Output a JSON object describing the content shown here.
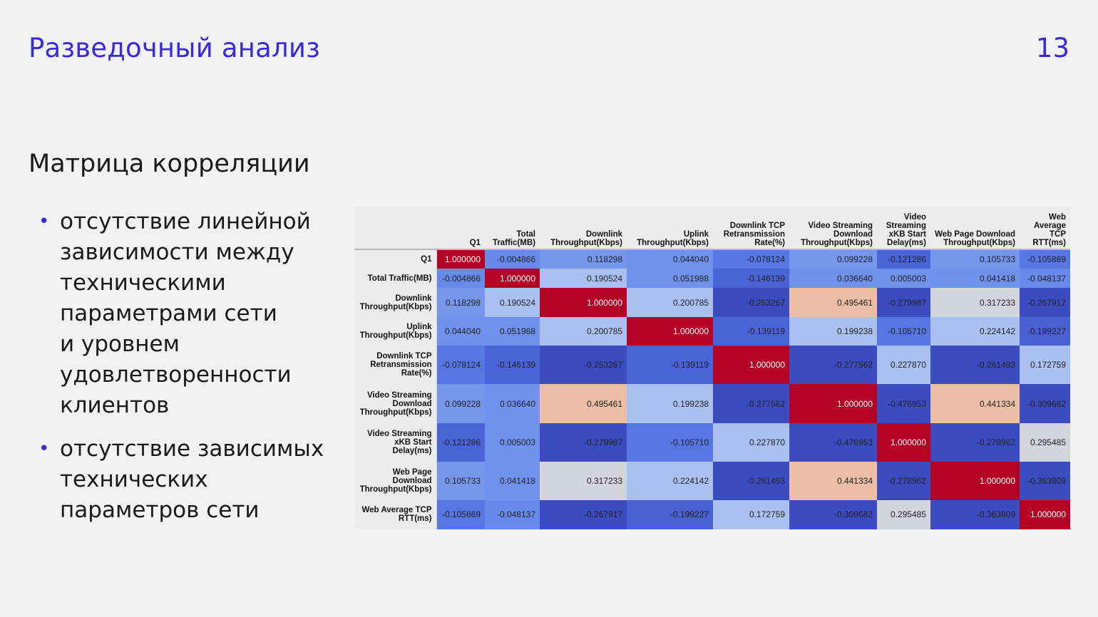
{
  "header": {
    "title": "Разведочный анализ",
    "page_number": "13"
  },
  "section": {
    "heading": "Матрица корреляции",
    "bullets": [
      "отсутствие линейной\nзависимости между\nтехническими\nпараметрами сети\nи уровнем\nудовлетворенности\nклиентов",
      "отсутствие зависимых\nтехнических\nпараметров сети"
    ]
  },
  "chart_data": {
    "type": "heatmap",
    "columns": [
      "Q1",
      "Total Traffic(MB)",
      "Downlink Throughput(Kbps)",
      "Uplink Throughput(Kbps)",
      "Downlink TCP Retransmission Rate(%)",
      "Video Streaming Download Throughput(Kbps)",
      "Video Streaming xKB Start Delay(ms)",
      "Web Page Download Throughput(Kbps)",
      "Web Average TCP RTT(ms)"
    ],
    "rows": [
      "Q1",
      "Total Traffic(MB)",
      "Downlink Throughput(Kbps)",
      "Uplink Throughput(Kbps)",
      "Downlink TCP Retransmission Rate(%)",
      "Video Streaming Download Throughput(Kbps)",
      "Video Streaming xKB Start Delay(ms)",
      "Web Page Download Throughput(Kbps)",
      "Web Average TCP RTT(ms)"
    ],
    "values": [
      [
        "1.000000",
        "-0.004866",
        "0.118298",
        "0.044040",
        "-0.078124",
        "0.099228",
        "-0.121286",
        "0.105733",
        "-0.105869"
      ],
      [
        "-0.004866",
        "1.000000",
        "0.190524",
        "0.051988",
        "-0.146139",
        "0.036640",
        "0.005003",
        "0.041418",
        "-0.048137"
      ],
      [
        "0.118298",
        "0.190524",
        "1.000000",
        "0.200785",
        "-0.253267",
        "0.495461",
        "-0.279987",
        "0.317233",
        "-0.267917"
      ],
      [
        "0.044040",
        "0.051988",
        "0.200785",
        "1.000000",
        "-0.139119",
        "0.199238",
        "-0.105710",
        "0.224142",
        "-0.199227"
      ],
      [
        "-0.078124",
        "-0.146139",
        "-0.253267",
        "-0.139119",
        "1.000000",
        "-0.277562",
        "0.227870",
        "-0.261493",
        "0.172759"
      ],
      [
        "0.099228",
        "0.036640",
        "0.495461",
        "0.199238",
        "-0.277562",
        "1.000000",
        "-0.476953",
        "0.441334",
        "-0.309682"
      ],
      [
        "-0.121286",
        "0.005003",
        "-0.279987",
        "-0.105710",
        "0.227870",
        "-0.476953",
        "1.000000",
        "-0.278962",
        "0.295485"
      ],
      [
        "0.105733",
        "0.041418",
        "0.317233",
        "0.224142",
        "-0.261493",
        "0.441334",
        "-0.278962",
        "1.000000",
        "-0.363809"
      ],
      [
        "-0.105869",
        "-0.048137",
        "-0.267917",
        "-0.199227",
        "0.172759",
        "-0.309682",
        "0.295485",
        "-0.363809",
        "1.000000"
      ]
    ],
    "colormap": "coolwarm",
    "colors": {
      "min": "#3a4cc0",
      "mid": "#dddddd",
      "max": "#b40426"
    }
  }
}
